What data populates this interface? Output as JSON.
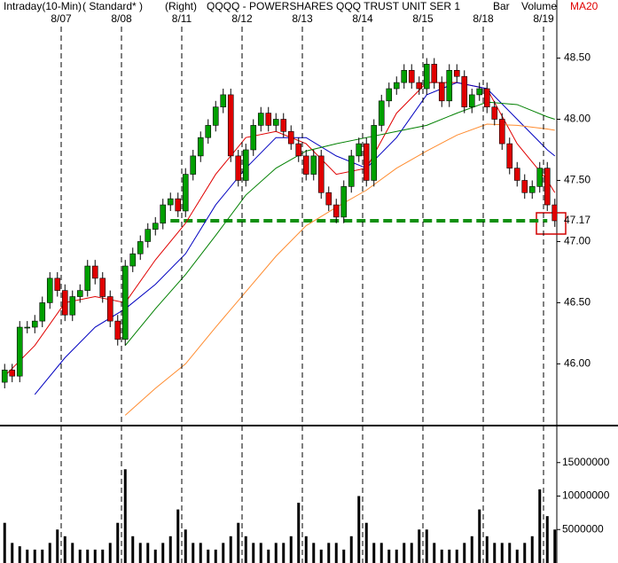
{
  "chart_data": [
    {
      "type": "candlestick",
      "header": [
        "Intraday(10-Min)",
        "( Standard* )",
        "(Right)",
        "QQQQ - POWERSHARES QQQ TRUST UNIT SER 1",
        "Bar",
        "Volume"
      ],
      "categories": [
        null,
        null,
        null,
        null,
        null,
        null,
        null,
        null,
        "8/07",
        null,
        null,
        null,
        null,
        null,
        null,
        null,
        "8/08",
        null,
        null,
        null,
        null,
        null,
        null,
        null,
        "8/11",
        null,
        null,
        null,
        null,
        null,
        null,
        null,
        "8/12",
        null,
        null,
        null,
        null,
        null,
        null,
        null,
        "8/13",
        null,
        null,
        null,
        null,
        null,
        null,
        null,
        "8/14",
        null,
        null,
        null,
        null,
        null,
        null,
        null,
        "8/15",
        null,
        null,
        null,
        null,
        null,
        null,
        null,
        "8/18",
        null,
        null,
        null,
        null,
        null,
        null,
        null,
        "8/19",
        null
      ],
      "open": [
        45.85,
        45.95,
        45.9,
        46.3,
        46.3,
        46.35,
        46.5,
        46.7,
        46.6,
        46.4,
        46.55,
        46.6,
        46.8,
        46.7,
        46.55,
        46.35,
        46.2,
        46.8,
        46.9,
        47.0,
        47.1,
        47.15,
        47.3,
        47.35,
        47.25,
        47.55,
        47.7,
        47.85,
        47.95,
        48.1,
        48.2,
        47.7,
        47.5,
        47.75,
        47.95,
        48.05,
        47.95,
        48.0,
        47.9,
        47.8,
        47.7,
        47.55,
        47.7,
        47.4,
        47.3,
        47.2,
        47.45,
        47.7,
        47.8,
        47.5,
        47.95,
        48.15,
        48.25,
        48.3,
        48.4,
        48.3,
        48.25,
        48.45,
        48.3,
        48.15,
        48.4,
        48.35,
        48.1,
        48.2,
        48.25,
        48.1,
        48.0,
        47.8,
        47.6,
        47.5,
        47.4,
        47.45,
        47.6,
        47.3
      ],
      "high": [
        46.0,
        46.0,
        46.35,
        46.35,
        46.4,
        46.55,
        46.75,
        46.75,
        46.65,
        46.6,
        46.65,
        46.85,
        46.85,
        46.75,
        46.6,
        46.4,
        46.85,
        46.95,
        47.05,
        47.15,
        47.2,
        47.35,
        47.4,
        47.4,
        47.6,
        47.75,
        47.9,
        48.0,
        48.15,
        48.25,
        48.25,
        47.75,
        47.8,
        48.0,
        48.1,
        48.1,
        48.05,
        48.05,
        47.95,
        47.85,
        47.75,
        47.75,
        47.75,
        47.45,
        47.35,
        47.5,
        47.75,
        47.85,
        47.85,
        48.0,
        48.2,
        48.3,
        48.35,
        48.45,
        48.45,
        48.35,
        48.5,
        48.5,
        48.35,
        48.45,
        48.45,
        48.4,
        48.25,
        48.3,
        48.3,
        48.15,
        48.05,
        47.85,
        47.65,
        47.55,
        47.5,
        47.65,
        47.65,
        47.35
      ],
      "low": [
        45.8,
        45.85,
        45.85,
        46.25,
        46.25,
        46.3,
        46.45,
        46.55,
        46.35,
        46.35,
        46.5,
        46.55,
        46.65,
        46.5,
        46.3,
        46.15,
        46.15,
        46.75,
        46.85,
        46.95,
        47.05,
        47.1,
        47.25,
        47.2,
        47.2,
        47.5,
        47.65,
        47.8,
        47.9,
        48.05,
        47.65,
        47.45,
        47.45,
        47.7,
        47.9,
        47.9,
        47.9,
        47.85,
        47.75,
        47.65,
        47.5,
        47.5,
        47.35,
        47.25,
        47.15,
        47.15,
        47.4,
        47.65,
        47.45,
        47.45,
        47.9,
        48.1,
        48.2,
        48.25,
        48.25,
        48.2,
        48.2,
        48.25,
        48.1,
        48.1,
        48.3,
        48.05,
        48.05,
        48.15,
        48.05,
        47.95,
        47.75,
        47.55,
        47.45,
        47.35,
        47.35,
        47.4,
        47.25,
        47.12
      ],
      "close": [
        45.95,
        45.9,
        46.3,
        46.3,
        46.35,
        46.5,
        46.7,
        46.6,
        46.4,
        46.55,
        46.6,
        46.8,
        46.7,
        46.55,
        46.35,
        46.2,
        46.8,
        46.9,
        47.0,
        47.1,
        47.15,
        47.3,
        47.35,
        47.25,
        47.55,
        47.7,
        47.85,
        47.95,
        48.1,
        48.2,
        47.7,
        47.5,
        47.75,
        47.95,
        48.05,
        47.95,
        48.0,
        47.9,
        47.8,
        47.7,
        47.55,
        47.7,
        47.4,
        47.3,
        47.2,
        47.45,
        47.7,
        47.8,
        47.5,
        47.95,
        48.15,
        48.25,
        48.3,
        48.4,
        48.3,
        48.25,
        48.45,
        48.3,
        48.15,
        48.4,
        48.35,
        48.1,
        48.2,
        48.25,
        48.1,
        48.0,
        47.8,
        47.6,
        47.5,
        47.4,
        47.45,
        47.6,
        47.3,
        47.17
      ],
      "up_color": "#00a000",
      "down_color": "#e00000",
      "x": [
        0,
        4,
        8,
        12,
        16,
        20,
        24,
        28,
        32,
        36,
        40,
        44,
        48,
        52,
        56,
        60,
        64,
        68,
        72,
        73
      ],
      "series": [
        {
          "name": "MA20",
          "color": "#e00000",
          "values": [
            45.9,
            46.15,
            46.5,
            46.55,
            46.5,
            46.85,
            47.15,
            47.55,
            47.85,
            47.9,
            47.8,
            47.55,
            47.6,
            48.05,
            48.3,
            48.3,
            48.25,
            47.8,
            47.5,
            47.4
          ]
        },
        {
          "color": "#0000c0",
          "values": [
            null,
            45.75,
            46.05,
            46.3,
            46.45,
            46.65,
            46.9,
            47.3,
            47.6,
            47.85,
            47.85,
            47.7,
            47.6,
            47.85,
            48.2,
            48.3,
            48.25,
            48.0,
            47.75,
            47.7
          ]
        },
        {
          "color": "#008000",
          "values": [
            null,
            null,
            null,
            null,
            46.15,
            46.45,
            46.73,
            47.05,
            47.38,
            47.6,
            47.74,
            47.8,
            47.85,
            47.9,
            47.95,
            48.05,
            48.14,
            48.12,
            48.02,
            48.0
          ]
        },
        {
          "color": "#ff8c30",
          "values": [
            null,
            null,
            null,
            null,
            45.58,
            45.8,
            46.0,
            46.3,
            46.59,
            46.88,
            47.13,
            47.28,
            47.42,
            47.6,
            47.74,
            47.87,
            47.96,
            47.95,
            47.92,
            47.91
          ]
        }
      ],
      "support_level": 47.17,
      "support_color": "#109010",
      "ylim": [
        45.51,
        48.83
      ],
      "yticks": [
        {
          "value": 48.5,
          "label": "48.50"
        },
        {
          "value": 48.0,
          "label": "48.00"
        },
        {
          "value": 47.5,
          "label": "47.50"
        },
        {
          "value": 47.0,
          "label": "47.00"
        },
        {
          "value": 46.5,
          "label": "46.50"
        },
        {
          "value": 46.0,
          "label": "46.00"
        }
      ]
    },
    {
      "type": "bar",
      "color": "#000000",
      "values": [
        6000000,
        3000000,
        2500000,
        2000000,
        2000000,
        2000000,
        3000000,
        5000000,
        4000000,
        3000000,
        2000000,
        2000000,
        2000000,
        2000000,
        3000000,
        6000000,
        14000000,
        4000000,
        3000000,
        3000000,
        2000000,
        3000000,
        4000000,
        8000000,
        5000000,
        3000000,
        3000000,
        2000000,
        2000000,
        3000000,
        4000000,
        6000000,
        4000000,
        3000000,
        3000000,
        2000000,
        3000000,
        3000000,
        4000000,
        9000000,
        4000000,
        3000000,
        2000000,
        3000000,
        3000000,
        2000000,
        4000000,
        10000000,
        6000000,
        3000000,
        3000000,
        2000000,
        2000000,
        3000000,
        3000000,
        5000000,
        5000000,
        3000000,
        2000000,
        2000000,
        2000000,
        3000000,
        4000000,
        8000000,
        4000000,
        3000000,
        3000000,
        3000000,
        2000000,
        3000000,
        4000000,
        11000000,
        7000000,
        5000000
      ],
      "ylim": [
        0,
        20000000
      ],
      "yticks": [
        15000000,
        10000000,
        5000000
      ]
    }
  ]
}
